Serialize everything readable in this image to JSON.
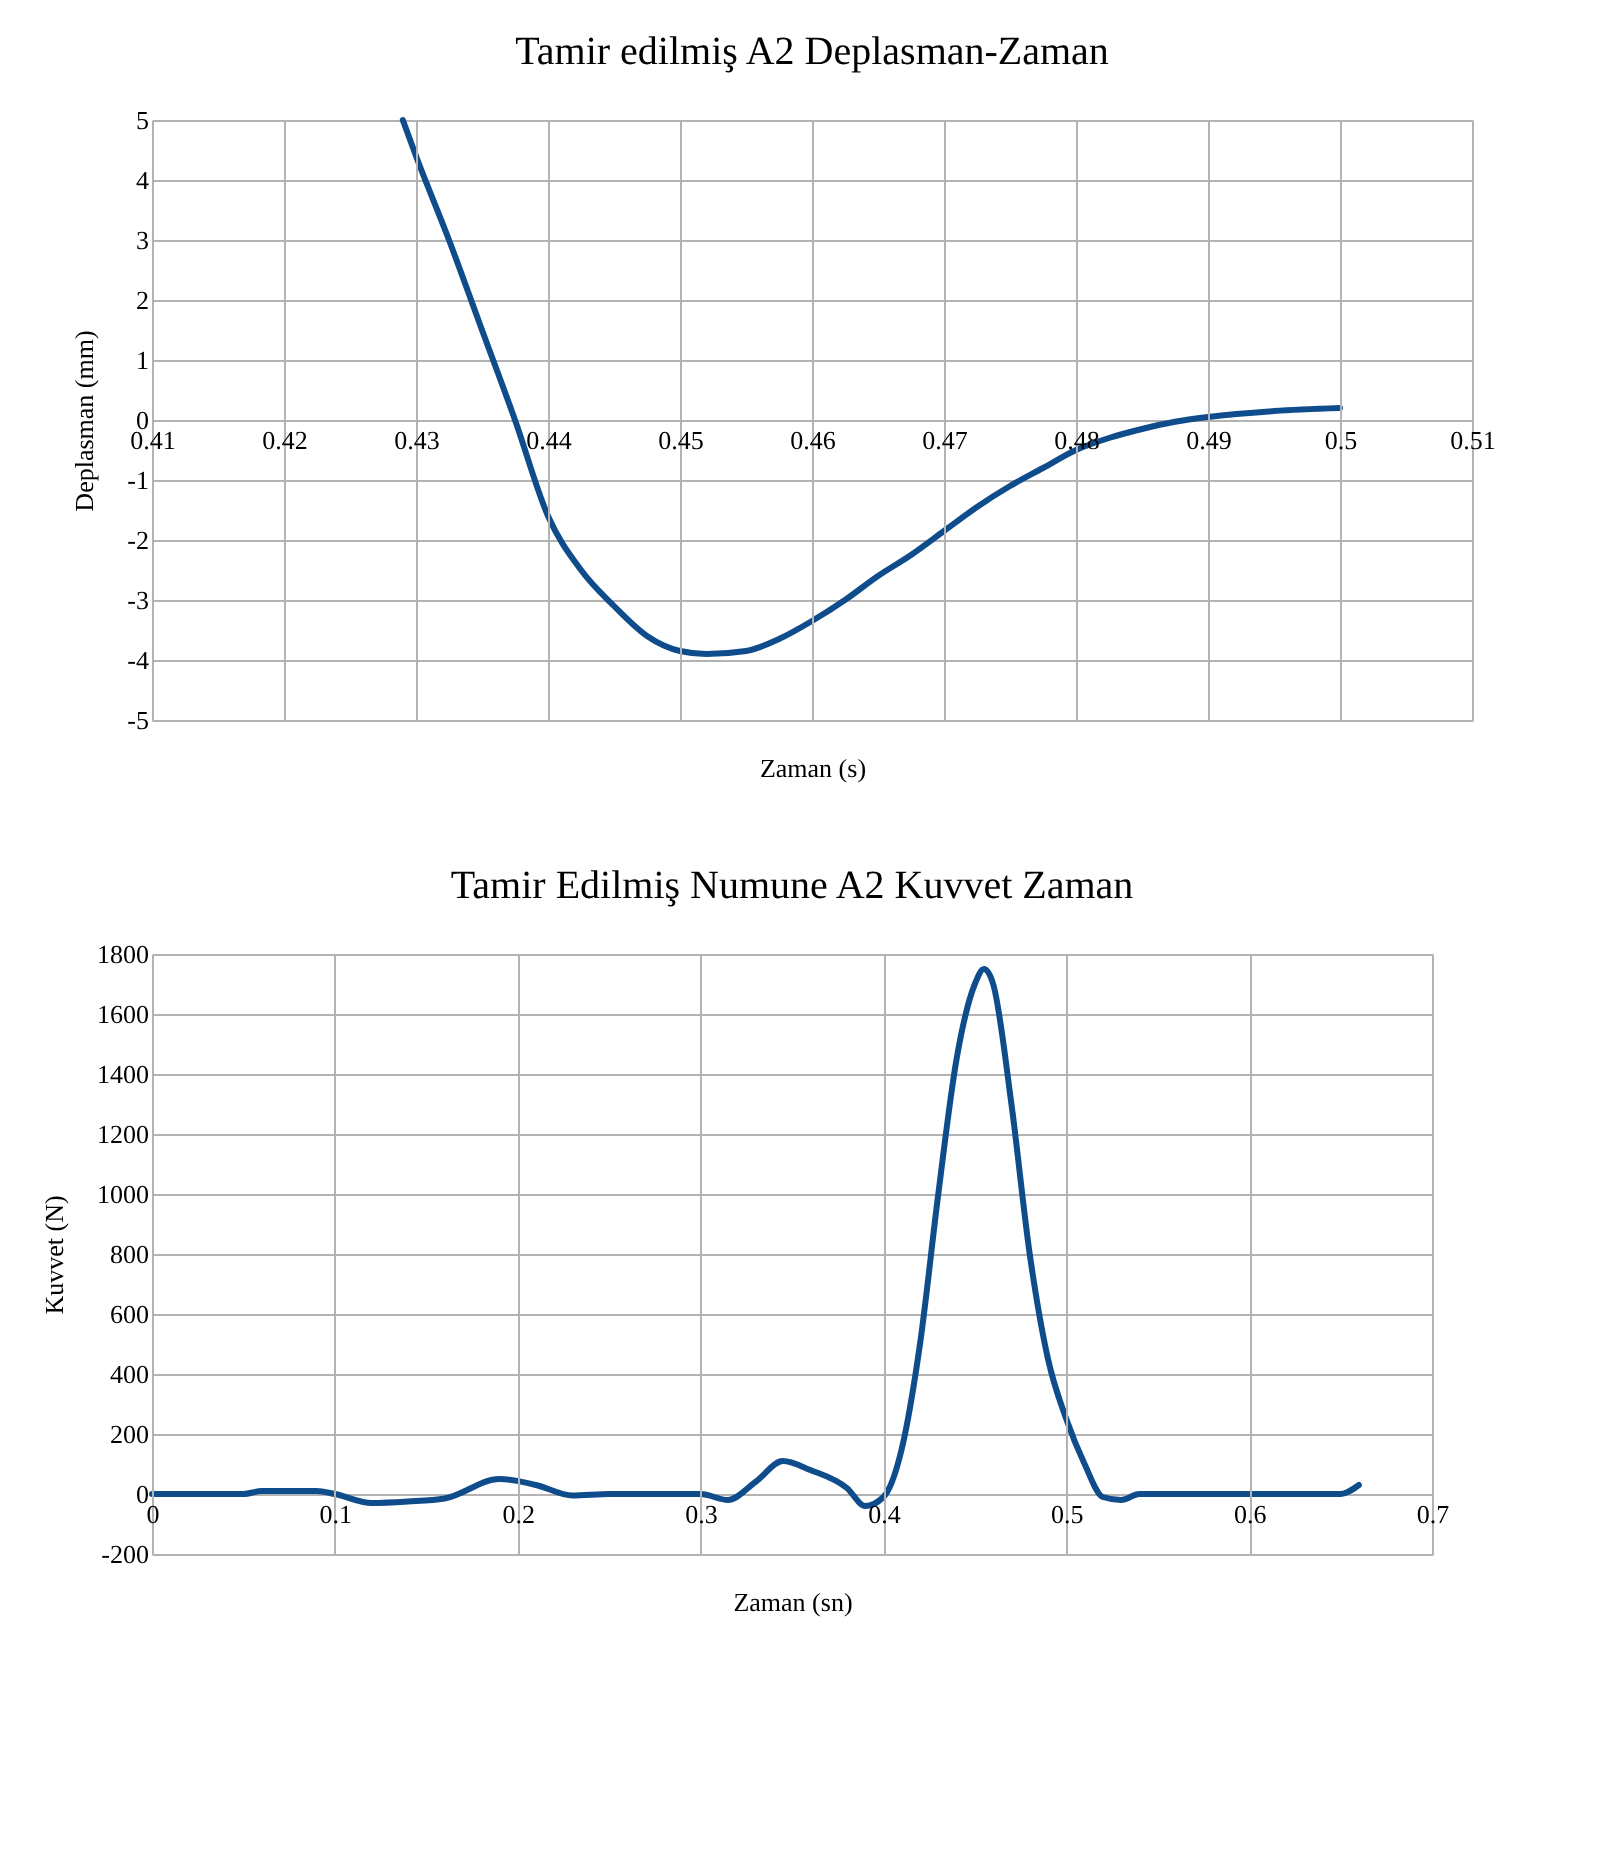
{
  "chart_data": [
    {
      "type": "line",
      "title": "Tamir edilmiş A2 Deplasman-Zaman",
      "xlabel": "Zaman (s)",
      "ylabel": "Deplasman (mm)",
      "xlim": [
        0.41,
        0.51
      ],
      "xticks": [
        0.41,
        0.42,
        0.43,
        0.44,
        0.45,
        0.46,
        0.47,
        0.48,
        0.49,
        0.5,
        0.51
      ],
      "ylim": [
        -5,
        5
      ],
      "yticks": [
        -5,
        -4,
        -3,
        -2,
        -1,
        0,
        1,
        2,
        3,
        4,
        5
      ],
      "grid": true,
      "line_style": "solid",
      "marker": "none",
      "series": [
        {
          "color": "#0f4c8c",
          "x": [
            0.429,
            0.43,
            0.4325,
            0.435,
            0.4375,
            0.44,
            0.4425,
            0.445,
            0.4475,
            0.45,
            0.452,
            0.455,
            0.4575,
            0.46,
            0.4625,
            0.465,
            0.4675,
            0.47,
            0.4725,
            0.475,
            0.4775,
            0.48,
            0.4825,
            0.485,
            0.4875,
            0.49,
            0.495,
            0.5
          ],
          "values": [
            5,
            4.4,
            3.0,
            1.5,
            0.0,
            -1.6,
            -2.5,
            -3.1,
            -3.6,
            -3.85,
            -3.9,
            -3.85,
            -3.65,
            -3.35,
            -3.0,
            -2.6,
            -2.25,
            -1.85,
            -1.45,
            -1.1,
            -0.8,
            -0.5,
            -0.3,
            -0.15,
            -0.03,
            0.05,
            0.15,
            0.2
          ]
        }
      ]
    },
    {
      "type": "line",
      "title": "Tamir Edilmiş Numune A2 Kuvvet Zaman",
      "xlabel": "Zaman (sn)",
      "ylabel": "Kuvvet (N)",
      "xlim": [
        0,
        0.7
      ],
      "xticks": [
        0,
        0.1,
        0.2,
        0.3,
        0.4,
        0.5,
        0.6,
        0.7
      ],
      "ylim": [
        -200,
        1800
      ],
      "yticks": [
        -200,
        0,
        200,
        400,
        600,
        800,
        1000,
        1200,
        1400,
        1600,
        1800
      ],
      "grid": true,
      "line_style": "solid",
      "marker": "none",
      "series": [
        {
          "color": "#0f4c8c",
          "x": [
            0,
            0.05,
            0.06,
            0.09,
            0.1,
            0.12,
            0.14,
            0.16,
            0.19,
            0.21,
            0.23,
            0.25,
            0.3,
            0.315,
            0.33,
            0.345,
            0.36,
            0.38,
            0.39,
            0.4,
            0.41,
            0.42,
            0.43,
            0.44,
            0.45,
            0.455,
            0.46,
            0.47,
            0.48,
            0.49,
            0.5,
            0.51,
            0.52,
            0.53,
            0.54,
            0.65,
            0.66
          ],
          "values": [
            0,
            0,
            10,
            10,
            0,
            -30,
            -25,
            -15,
            50,
            30,
            -5,
            0,
            0,
            -20,
            40,
            110,
            80,
            20,
            -40,
            -10,
            150,
            500,
            1000,
            1450,
            1700,
            1750,
            1700,
            1300,
            800,
            450,
            250,
            100,
            -10,
            -20,
            0,
            0,
            30
          ]
        }
      ]
    }
  ]
}
